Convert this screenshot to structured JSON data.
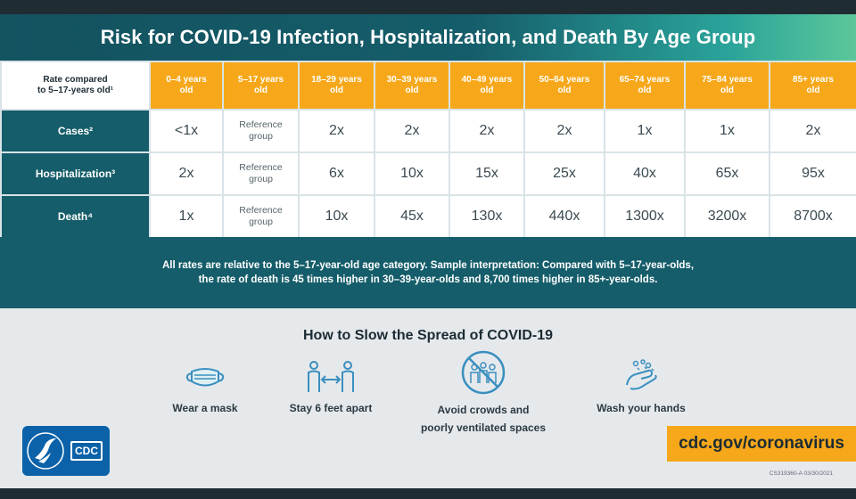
{
  "title": "Risk for COVID-19 Infection, Hospitalization, and Death By Age Group",
  "table": {
    "corner_line1": "Rate compared",
    "corner_line2": "to 5–17-years old¹",
    "age_groups": [
      {
        "line1": "0–4 years",
        "line2": "old"
      },
      {
        "line1": "5–17 years",
        "line2": "old"
      },
      {
        "line1": "18–29 years",
        "line2": "old"
      },
      {
        "line1": "30–39 years",
        "line2": "old"
      },
      {
        "line1": "40–49 years",
        "line2": "old"
      },
      {
        "line1": "50–64 years",
        "line2": "old"
      },
      {
        "line1": "65–74 years",
        "line2": "old"
      },
      {
        "line1": "75–84 years",
        "line2": "old"
      },
      {
        "line1": "85+ years",
        "line2": "old"
      }
    ],
    "reference_line1": "Reference",
    "reference_line2": "group",
    "rows": [
      {
        "label": "Cases²",
        "values": [
          "<1x",
          "",
          "2x",
          "2x",
          "2x",
          "2x",
          "1x",
          "1x",
          "2x"
        ]
      },
      {
        "label": "Hospitalization³",
        "values": [
          "2x",
          "",
          "6x",
          "10x",
          "15x",
          "25x",
          "40x",
          "65x",
          "95x"
        ]
      },
      {
        "label": "Death⁴",
        "values": [
          "1x",
          "",
          "10x",
          "45x",
          "130x",
          "440x",
          "1300x",
          "3200x",
          "8700x"
        ]
      }
    ]
  },
  "note": {
    "line1": "All rates are relative to the 5–17-year-old age category. Sample interpretation: Compared with 5–17-year-olds,",
    "line2": "the rate of death is 45 times higher in 30–39-year-olds and 8,700 times higher in 85+-year-olds."
  },
  "prevention": {
    "heading": "How to Slow the Spread of COVID-19",
    "tips": [
      {
        "icon": "mask-icon",
        "line1": "Wear a mask",
        "line2": ""
      },
      {
        "icon": "distance-icon",
        "line1": "Stay 6 feet apart",
        "line2": ""
      },
      {
        "icon": "crowd-icon",
        "line1": "Avoid crowds and",
        "line2": "poorly ventilated spaces"
      },
      {
        "icon": "handwash-icon",
        "line1": "Wash your hands",
        "line2": ""
      }
    ]
  },
  "footer": {
    "logo_text": "CDC",
    "site": "cdc.gov/coronavirus",
    "code": "CS319360-A 03/30/2021"
  },
  "colors": {
    "teal": "#155d6a",
    "orange": "#f6a81a",
    "green": "#5cc79a",
    "cdc_blue": "#0b62a8"
  }
}
